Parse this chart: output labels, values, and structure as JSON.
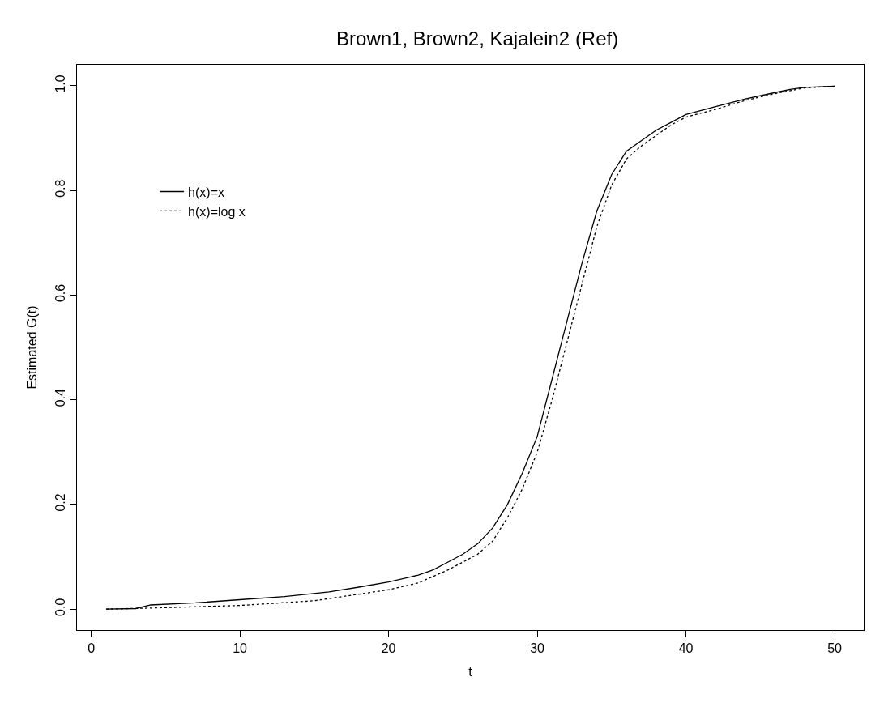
{
  "chart_data": {
    "type": "line",
    "title": "Brown1, Brown2, Kajalein2 (Ref)",
    "xlabel": "t",
    "ylabel": "Estimated G(t)",
    "xlim": [
      -0.96,
      51.96
    ],
    "xticks": [
      0,
      10,
      20,
      30,
      40,
      50
    ],
    "ylim": [
      -0.04,
      1.04
    ],
    "yticks": [
      {
        "value": 0,
        "label": "0.0"
      },
      {
        "value": 0.2,
        "label": "0.2"
      },
      {
        "value": 0.4,
        "label": "0.4"
      },
      {
        "value": 0.6,
        "label": "0.6"
      },
      {
        "value": 0.8,
        "label": "0.8"
      },
      {
        "value": 1.0,
        "label": "1.0"
      }
    ],
    "legend": "top left",
    "marker": "none",
    "series": [
      {
        "name": "h(x)=x",
        "color": "#000000",
        "line_style": "solid",
        "x": [
          1,
          3,
          4,
          7,
          10,
          13,
          16,
          18,
          20,
          22,
          23,
          24,
          25,
          26,
          27,
          28,
          29,
          30,
          31,
          32,
          33,
          34,
          35,
          36,
          37,
          38,
          39,
          40,
          42,
          44,
          46,
          47,
          48,
          50
        ],
        "values": [
          0.0,
          0.001,
          0.008,
          0.012,
          0.018,
          0.024,
          0.033,
          0.042,
          0.052,
          0.065,
          0.075,
          0.09,
          0.105,
          0.125,
          0.155,
          0.2,
          0.26,
          0.33,
          0.44,
          0.55,
          0.66,
          0.76,
          0.83,
          0.875,
          0.895,
          0.915,
          0.93,
          0.945,
          0.96,
          0.975,
          0.987,
          0.993,
          0.997,
          0.999
        ]
      },
      {
        "name": "h(x)=log x",
        "color": "#000000",
        "line_style": "dotted",
        "x": [
          1,
          4,
          10,
          15,
          20,
          22,
          24,
          26,
          27,
          28,
          29,
          30,
          31,
          32,
          33,
          34,
          35,
          36,
          37,
          38,
          39,
          40,
          42,
          44,
          46,
          48,
          50
        ],
        "values": [
          0.0,
          0.002,
          0.007,
          0.016,
          0.037,
          0.05,
          0.075,
          0.105,
          0.13,
          0.175,
          0.23,
          0.3,
          0.4,
          0.51,
          0.62,
          0.73,
          0.81,
          0.86,
          0.885,
          0.905,
          0.925,
          0.94,
          0.955,
          0.972,
          0.985,
          0.996,
          0.999
        ]
      }
    ]
  }
}
